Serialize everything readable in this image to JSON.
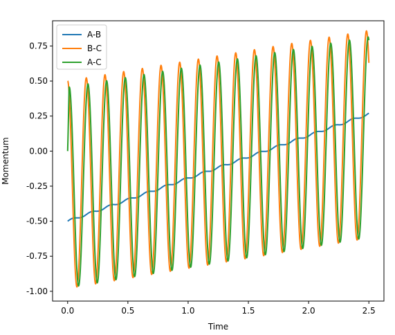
{
  "chart_data": {
    "type": "line",
    "title": "",
    "xlabel": "Time",
    "ylabel": "Momentum",
    "xlim": [
      -0.125,
      2.625
    ],
    "ylim": [
      -1.07,
      0.93
    ],
    "xticks": [
      "0.0",
      "0.5",
      "1.0",
      "1.5",
      "2.0",
      "2.5"
    ],
    "xtick_values": [
      0.0,
      0.5,
      1.0,
      1.5,
      2.0,
      2.5
    ],
    "yticks": [
      "-1.00",
      "-0.75",
      "-0.50",
      "-0.25",
      "0.00",
      "0.25",
      "0.50",
      "0.75"
    ],
    "ytick_values": [
      -1.0,
      -0.75,
      -0.5,
      -0.25,
      0.0,
      0.25,
      0.5,
      0.75
    ],
    "grid": false,
    "legend_position": "top-left",
    "x_range": [
      0.0,
      2.5
    ],
    "series": [
      {
        "name": "A-B",
        "color": "#1f77b4",
        "description": "slowly rising with small ripples",
        "start_value": -0.5,
        "end_value": 0.265,
        "ripple_amplitude": 0.008,
        "oscillation_period": 0.155
      },
      {
        "name": "B-C",
        "color": "#ff7f0e",
        "description": "large oscillation, slowly rising center",
        "start_value": 0.5,
        "first_trough": -0.98,
        "last_peak": 0.86,
        "oscillation_period": 0.155
      },
      {
        "name": "A-C",
        "color": "#2ca02c",
        "description": "large oscillation, slowly rising center",
        "start_value": 0.0,
        "first_peak": 0.45,
        "first_trough": -0.97,
        "last_peak": 0.82,
        "oscillation_period": 0.155
      }
    ]
  }
}
